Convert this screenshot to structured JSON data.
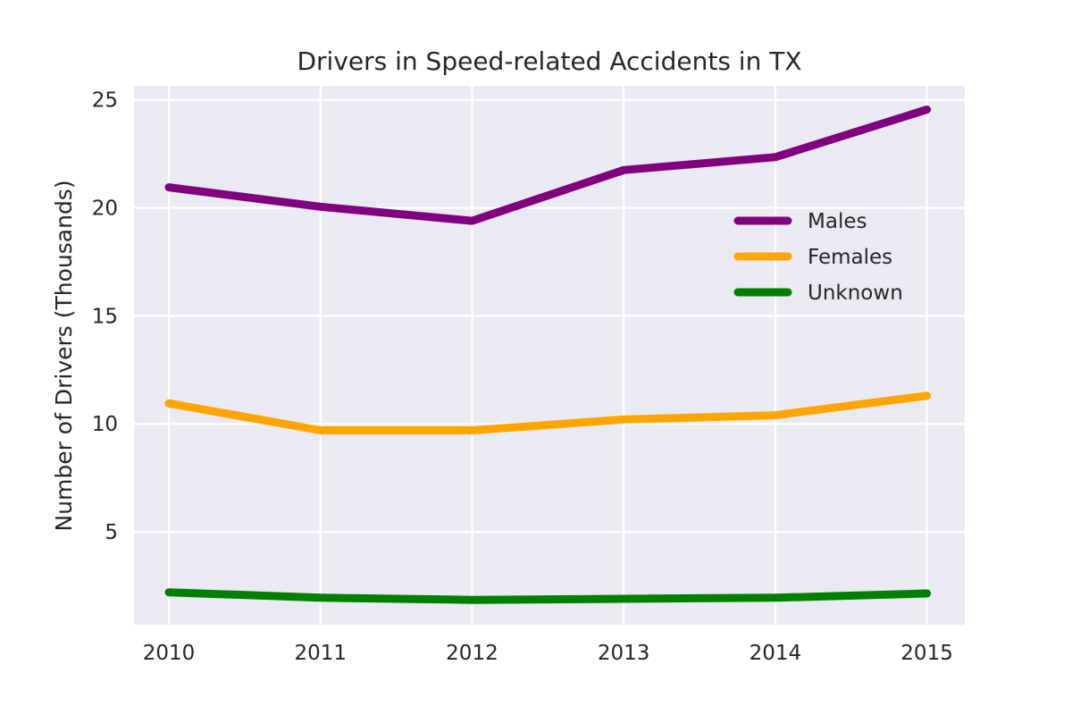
{
  "chart_data": {
    "type": "line",
    "title": "Drivers in Speed-related Accidents in TX",
    "xlabel": "",
    "ylabel": "Number of Drivers (Thousands)",
    "x": [
      2010,
      2011,
      2012,
      2013,
      2014,
      2015
    ],
    "x_tick_labels": [
      "2010",
      "2011",
      "2012",
      "2013",
      "2014",
      "2015"
    ],
    "y_ticks": [
      5,
      10,
      15,
      20,
      25
    ],
    "y_tick_labels": [
      "5",
      "10",
      "15",
      "20",
      "25"
    ],
    "xlim": [
      2009.77,
      2015.25
    ],
    "ylim": [
      0.7,
      25.65
    ],
    "grid": true,
    "legend_position": "center-right",
    "background_color": "#eaeaf2",
    "series": [
      {
        "name": "Males",
        "color": "#800080",
        "values": [
          20.95,
          20.05,
          19.4,
          21.75,
          22.35,
          24.55
        ]
      },
      {
        "name": "Females",
        "color": "#ffa500",
        "values": [
          10.95,
          9.7,
          9.7,
          10.2,
          10.4,
          11.3
        ]
      },
      {
        "name": "Unknown",
        "color": "#008000",
        "values": [
          2.2,
          1.95,
          1.85,
          1.9,
          1.95,
          2.15
        ]
      }
    ]
  }
}
